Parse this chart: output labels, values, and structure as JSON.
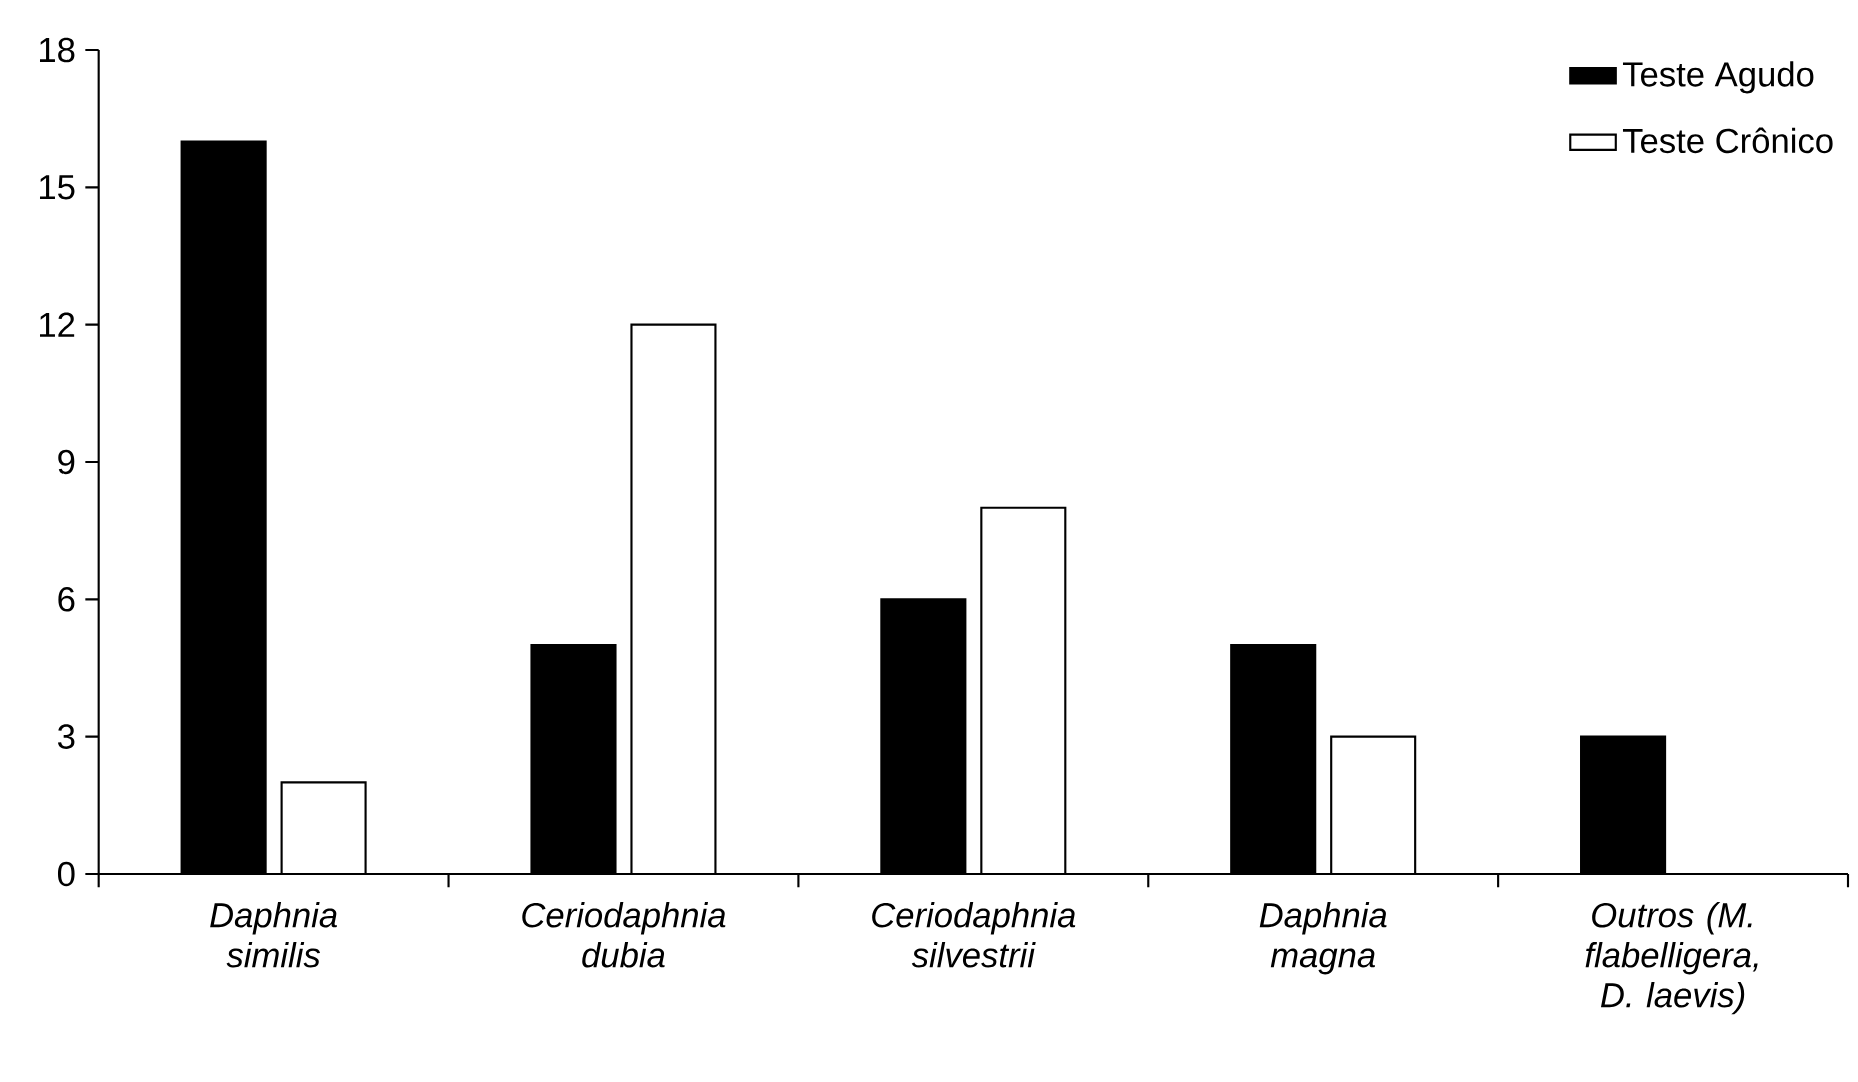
{
  "chart_data": {
    "type": "bar",
    "categories": [
      "Daphnia similis",
      "Ceriodaphnia dubia",
      "Ceriodaphnia silvestrii",
      "Daphnia magna",
      "Outros (M. flabelligera, D. laevis)"
    ],
    "series": [
      {
        "name": "Teste Agudo",
        "color": "#000000",
        "values": [
          16,
          5,
          6,
          5,
          3
        ]
      },
      {
        "name": "Teste Crônico",
        "color": "#ffffff",
        "values": [
          2,
          12,
          8,
          3,
          null
        ]
      }
    ],
    "ylim": [
      0,
      18
    ],
    "yticks": [
      0,
      3,
      6,
      9,
      12,
      15,
      18
    ],
    "grid": false,
    "legend": "top right"
  }
}
